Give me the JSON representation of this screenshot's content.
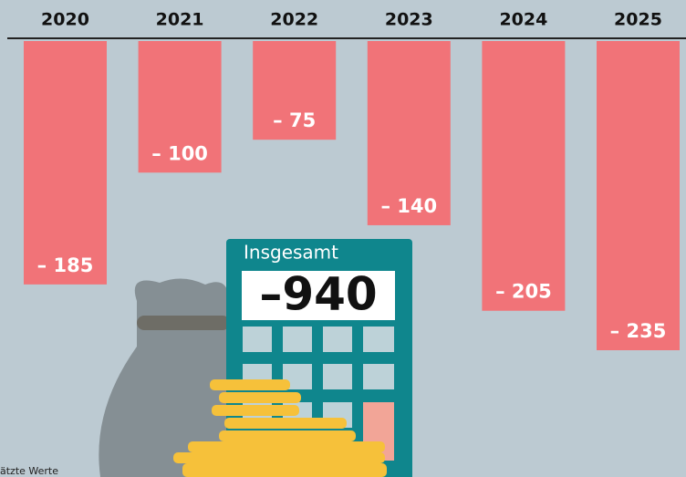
{
  "chart_data": {
    "type": "bar",
    "categories": [
      "2020",
      "2021",
      "2022",
      "2023",
      "2024",
      "2025"
    ],
    "values": [
      -185,
      -100,
      -75,
      -140,
      -205,
      -235
    ],
    "value_labels": [
      "– 185",
      "– 100",
      "– 75",
      "– 140",
      "– 205",
      "– 235"
    ],
    "color": "#f17378",
    "ylim": [
      -235,
      0
    ],
    "total_label": "Insgesamt",
    "total": -940,
    "total_value_label": "–940",
    "footnote": "ätzte Werte"
  }
}
